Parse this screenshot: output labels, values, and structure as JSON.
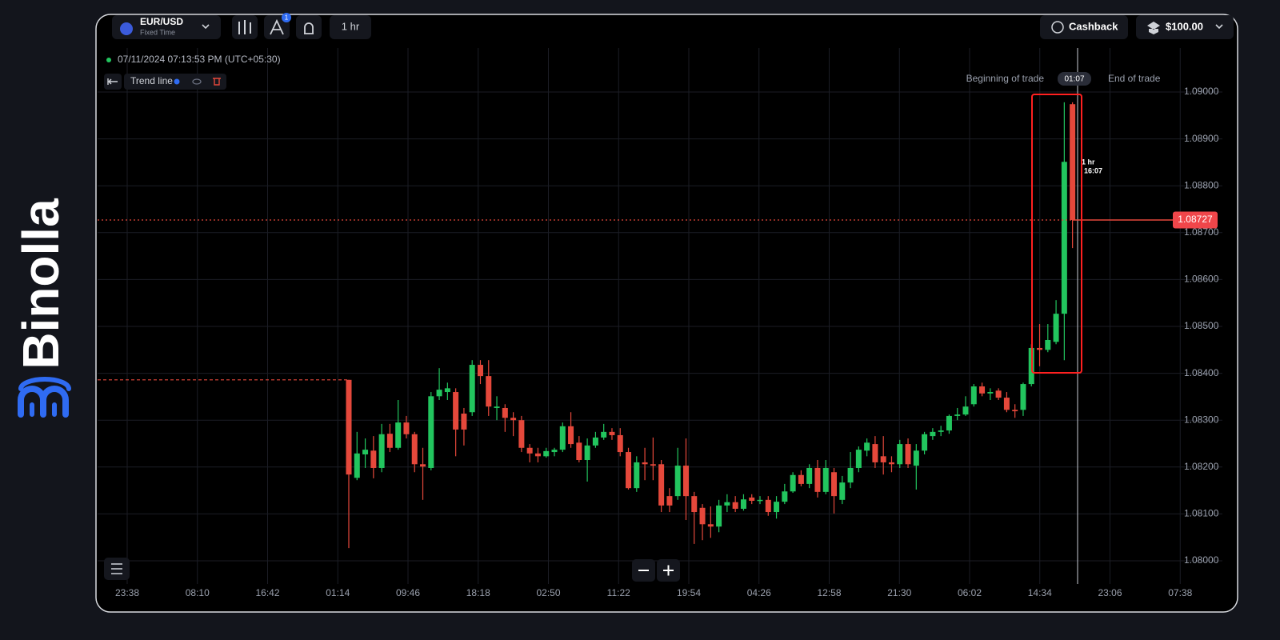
{
  "brand": "Binolla",
  "toolbar": {
    "pair": "EUR/USD",
    "mode": "Fixed Time",
    "badge": "1",
    "timeframe": "1 hr",
    "cashback": "Cashback",
    "balance": "$100.00"
  },
  "status": {
    "datetime": "07/11/2024 07:13:53 PM (UTC+05:30)",
    "tool": "Trend line"
  },
  "trade": {
    "begin": "Beginning of trade",
    "timer": "01:07",
    "end": "End of trade",
    "expiry_period": "1 hr",
    "expiry_time": "16:07"
  },
  "chart_data": {
    "type": "candlestick",
    "up_color": "#22c55e",
    "down_color": "#e5483b",
    "grid": true,
    "ylim": [
      1.0795,
      1.091
    ],
    "yticks": [
      {
        "value": 1.08,
        "label": "1.08000"
      },
      {
        "value": 1.081,
        "label": "1.08100"
      },
      {
        "value": 1.082,
        "label": "1.08200"
      },
      {
        "value": 1.083,
        "label": "1.08300"
      },
      {
        "value": 1.084,
        "label": "1.08400"
      },
      {
        "value": 1.085,
        "label": "1.08500"
      },
      {
        "value": 1.086,
        "label": "1.08600"
      },
      {
        "value": 1.087,
        "label": "1.08700"
      },
      {
        "value": 1.088,
        "label": "1.08800"
      },
      {
        "value": 1.089,
        "label": "1.08900"
      },
      {
        "value": 1.09,
        "label": "1.09000"
      }
    ],
    "current_price": {
      "value": 1.08727,
      "label": "1.08727"
    },
    "x_tick_labels": [
      "23:38",
      "08:10",
      "16:42",
      "01:14",
      "09:46",
      "18:18",
      "02:50",
      "11:22",
      "19:54",
      "04:26",
      "12:58",
      "21:30",
      "06:02",
      "14:34",
      "23:06",
      "07:38"
    ],
    "ohlc": [
      [
        1.08386,
        1.08386,
        1.08027,
        1.08184
      ],
      [
        1.08177,
        1.08275,
        1.08172,
        1.08229
      ],
      [
        1.08227,
        1.08261,
        1.08198,
        1.08237
      ],
      [
        1.08235,
        1.08266,
        1.08176,
        1.08198
      ],
      [
        1.08198,
        1.08292,
        1.08189,
        1.0827
      ],
      [
        1.08271,
        1.08292,
        1.08232,
        1.08241
      ],
      [
        1.08241,
        1.08343,
        1.08237,
        1.08295
      ],
      [
        1.08295,
        1.08309,
        1.08261,
        1.0827
      ],
      [
        1.0827,
        1.08275,
        1.08189,
        1.08206
      ],
      [
        1.08206,
        1.08241,
        1.0813,
        1.08201
      ],
      [
        1.08198,
        1.0836,
        1.08193,
        1.08351
      ],
      [
        1.08351,
        1.08411,
        1.08343,
        1.08365
      ],
      [
        1.0836,
        1.0838,
        1.08343,
        1.08368
      ],
      [
        1.0836,
        1.08368,
        1.08223,
        1.0828
      ],
      [
        1.08314,
        1.08326,
        1.08246,
        1.0828
      ],
      [
        1.08317,
        1.08428,
        1.08309,
        1.08418
      ],
      [
        1.08418,
        1.08428,
        1.08377,
        1.08394
      ],
      [
        1.08394,
        1.08428,
        1.08309,
        1.08329
      ],
      [
        1.08326,
        1.08351,
        1.083,
        1.08329
      ],
      [
        1.08326,
        1.08334,
        1.08275,
        1.08305
      ],
      [
        1.08305,
        1.08317,
        1.08266,
        1.083
      ],
      [
        1.083,
        1.08309,
        1.08232,
        1.08241
      ],
      [
        1.08241,
        1.08249,
        1.0821,
        1.08229
      ],
      [
        1.08229,
        1.08241,
        1.0821,
        1.08223
      ],
      [
        1.08223,
        1.08241,
        1.0822,
        1.08234
      ],
      [
        1.08232,
        1.08241,
        1.08223,
        1.08237
      ],
      [
        1.08237,
        1.08295,
        1.08232,
        1.08287
      ],
      [
        1.08287,
        1.08317,
        1.08241,
        1.08249
      ],
      [
        1.08252,
        1.08266,
        1.0821,
        1.08215
      ],
      [
        1.08215,
        1.08261,
        1.08169,
        1.08246
      ],
      [
        1.08246,
        1.08275,
        1.08241,
        1.08263
      ],
      [
        1.08263,
        1.08292,
        1.08258,
        1.08275
      ],
      [
        1.08275,
        1.08283,
        1.08258,
        1.08268
      ],
      [
        1.08268,
        1.08283,
        1.08223,
        1.08232
      ],
      [
        1.08232,
        1.08241,
        1.08152,
        1.08155
      ],
      [
        1.08155,
        1.08223,
        1.08147,
        1.0821
      ],
      [
        1.0821,
        1.08241,
        1.08172,
        1.08206
      ],
      [
        1.08206,
        1.08263,
        1.08172,
        1.08203
      ],
      [
        1.08206,
        1.08215,
        1.08104,
        1.08118
      ],
      [
        1.08138,
        1.08155,
        1.08104,
        1.08118
      ],
      [
        1.08138,
        1.08241,
        1.0813,
        1.08203
      ],
      [
        1.08203,
        1.08261,
        1.08087,
        1.08138
      ],
      [
        1.08138,
        1.08147,
        1.08036,
        1.08104
      ],
      [
        1.08113,
        1.08121,
        1.08044,
        1.08078
      ],
      [
        1.08078,
        1.08116,
        1.08049,
        1.08073
      ],
      [
        1.08073,
        1.0813,
        1.08061,
        1.08118
      ],
      [
        1.08118,
        1.08142,
        1.08104,
        1.08125
      ],
      [
        1.08125,
        1.08138,
        1.08104,
        1.08111
      ],
      [
        1.08111,
        1.08142,
        1.08107,
        1.08131
      ],
      [
        1.08135,
        1.08142,
        1.08121,
        1.08128
      ],
      [
        1.08128,
        1.08138,
        1.08121,
        1.0813
      ],
      [
        1.0813,
        1.08138,
        1.08096,
        1.08104
      ],
      [
        1.08104,
        1.08138,
        1.0809,
        1.08126
      ],
      [
        1.08126,
        1.08164,
        1.08121,
        1.08148
      ],
      [
        1.08148,
        1.08189,
        1.08145,
        1.08183
      ],
      [
        1.08183,
        1.08193,
        1.08159,
        1.08164
      ],
      [
        1.08164,
        1.08206,
        1.08155,
        1.08198
      ],
      [
        1.08198,
        1.08215,
        1.08135,
        1.08147
      ],
      [
        1.08147,
        1.08215,
        1.08142,
        1.08198
      ],
      [
        1.08189,
        1.08198,
        1.08101,
        1.08138
      ],
      [
        1.0813,
        1.08181,
        1.08121,
        1.08167
      ],
      [
        1.08167,
        1.08232,
        1.08155,
        1.08198
      ],
      [
        1.08198,
        1.08244,
        1.08189,
        1.08237
      ],
      [
        1.08235,
        1.08261,
        1.08223,
        1.08252
      ],
      [
        1.08249,
        1.08266,
        1.08198,
        1.0821
      ],
      [
        1.08223,
        1.08266,
        1.08184,
        1.0821
      ],
      [
        1.0821,
        1.08223,
        1.08189,
        1.08206
      ],
      [
        1.08206,
        1.08258,
        1.08198,
        1.08249
      ],
      [
        1.08249,
        1.08261,
        1.08198,
        1.08206
      ],
      [
        1.08203,
        1.08249,
        1.08152,
        1.08235
      ],
      [
        1.08235,
        1.08275,
        1.08227,
        1.0827
      ],
      [
        1.08266,
        1.08283,
        1.08258,
        1.08275
      ],
      [
        1.08275,
        1.08288,
        1.08266,
        1.08278
      ],
      [
        1.08278,
        1.08312,
        1.08271,
        1.08309
      ],
      [
        1.08309,
        1.08326,
        1.083,
        1.08312
      ],
      [
        1.08312,
        1.08351,
        1.08309,
        1.08329
      ],
      [
        1.08334,
        1.08377,
        1.08329,
        1.08372
      ],
      [
        1.08372,
        1.0838,
        1.08351,
        1.08357
      ],
      [
        1.08357,
        1.08368,
        1.08343,
        1.0836
      ],
      [
        1.08363,
        1.08368,
        1.08343,
        1.08348
      ],
      [
        1.08348,
        1.0836,
        1.08317,
        1.08322
      ],
      [
        1.08322,
        1.08334,
        1.08305,
        1.08319
      ],
      [
        1.08322,
        1.0838,
        1.08309,
        1.08377
      ],
      [
        1.08377,
        1.08462,
        1.08372,
        1.08454
      ],
      [
        1.08454,
        1.08505,
        1.08415,
        1.0845
      ],
      [
        1.0845,
        1.08505,
        1.08445,
        1.08471
      ],
      [
        1.08467,
        1.08556,
        1.08462,
        1.08527
      ],
      [
        1.08527,
        1.08978,
        1.08428,
        1.08851
      ],
      [
        1.08974,
        1.08978,
        1.08667,
        1.08727
      ]
    ]
  }
}
